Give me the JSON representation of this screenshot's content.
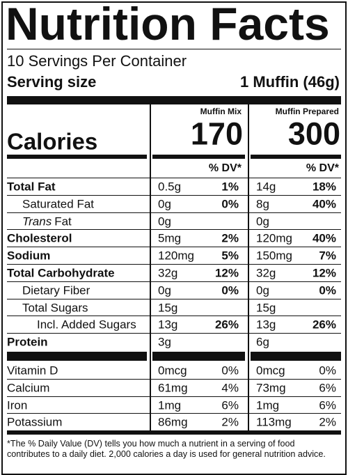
{
  "title": "Nutrition Facts",
  "servings": "10 Servings Per Container",
  "serving_size": {
    "label": "Serving size",
    "value": "1 Muffin (46g)"
  },
  "columns": [
    "Muffin Mix",
    "Muffin Prepared"
  ],
  "calories": {
    "label": "Calories",
    "values": [
      "170",
      "300"
    ]
  },
  "dv_header": [
    "% DV*",
    "% DV*"
  ],
  "nutrients": [
    {
      "name": "Total Fat",
      "bold": true,
      "indent": 0,
      "amounts": [
        "0.5g",
        "14g"
      ],
      "dv": [
        "1%",
        "18%"
      ]
    },
    {
      "name": "Saturated Fat",
      "bold": false,
      "indent": 1,
      "amounts": [
        "0g",
        "8g"
      ],
      "dv": [
        "0%",
        "40%"
      ]
    },
    {
      "italic_prefix": "Trans",
      "name": "Fat",
      "bold": false,
      "indent": 1,
      "amounts": [
        "0g",
        "0g"
      ],
      "dv": [
        null,
        null
      ]
    },
    {
      "name": "Cholesterol",
      "bold": true,
      "indent": 0,
      "amounts": [
        "5mg",
        "120mg"
      ],
      "dv": [
        "2%",
        "40%"
      ]
    },
    {
      "name": "Sodium",
      "bold": true,
      "indent": 0,
      "amounts": [
        "120mg",
        "150mg"
      ],
      "dv": [
        "5%",
        "7%"
      ]
    },
    {
      "name": "Total Carbohydrate",
      "bold": true,
      "indent": 0,
      "amounts": [
        "32g",
        "32g"
      ],
      "dv": [
        "12%",
        "12%"
      ]
    },
    {
      "name": "Dietary Fiber",
      "bold": false,
      "indent": 1,
      "amounts": [
        "0g",
        "0g"
      ],
      "dv": [
        "0%",
        "0%"
      ]
    },
    {
      "name": "Total Sugars",
      "bold": false,
      "indent": 1,
      "amounts": [
        "15g",
        "15g"
      ],
      "dv": [
        null,
        null
      ]
    },
    {
      "name": "Incl. Added Sugars",
      "bold": false,
      "indent": 2,
      "amounts": [
        "13g",
        "13g"
      ],
      "dv": [
        "26%",
        "26%"
      ]
    },
    {
      "name": "Protein",
      "bold": true,
      "indent": 0,
      "amounts": [
        "3g",
        "6g"
      ],
      "dv": [
        null,
        null
      ]
    }
  ],
  "vitamins": [
    {
      "name": "Vitamin D",
      "amounts": [
        "0mcg",
        "0mcg"
      ],
      "dv": [
        "0%",
        "0%"
      ]
    },
    {
      "name": "Calcium",
      "amounts": [
        "61mg",
        "73mg"
      ],
      "dv": [
        "4%",
        "6%"
      ]
    },
    {
      "name": "Iron",
      "amounts": [
        "1mg",
        "1mg"
      ],
      "dv": [
        "6%",
        "6%"
      ]
    },
    {
      "name": "Potassium",
      "amounts": [
        "86mg",
        "113mg"
      ],
      "dv": [
        "2%",
        "2%"
      ]
    }
  ],
  "footnote": "*The % Daily Value (DV) tells you how much a nutrient in a serving of food contributes to a daily diet. 2,000 calories a day is used for general nutrition advice."
}
